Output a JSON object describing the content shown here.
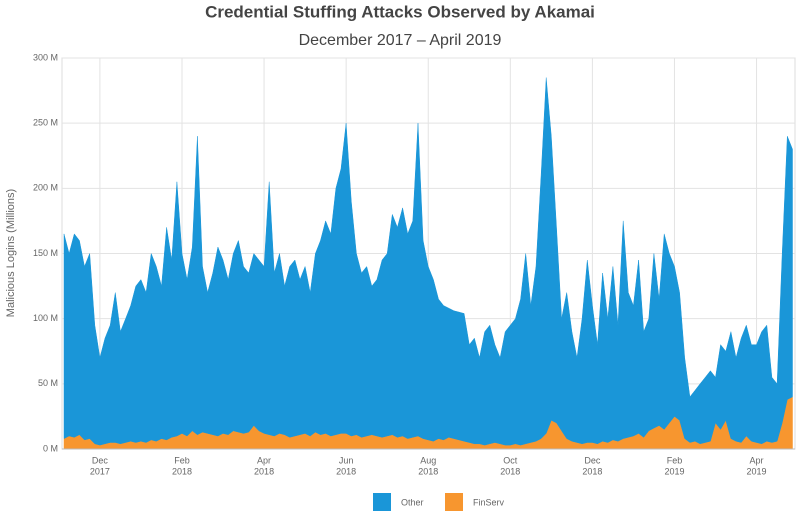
{
  "chart_data": {
    "type": "stacked_area",
    "title": "Credential Stuffing Attacks Observed by Akamai",
    "subtitle": "December 2017 – April 2019",
    "y_label": "Malicious Logins (Millions)",
    "ylim": [
      0,
      300
    ],
    "yticks": [
      {
        "value": 0,
        "label": "0 M"
      },
      {
        "value": 50,
        "label": "50 M"
      },
      {
        "value": 100,
        "label": "100 M"
      },
      {
        "value": 150,
        "label": "150 M"
      },
      {
        "value": 200,
        "label": "200 M"
      },
      {
        "value": 250,
        "label": "250 M"
      },
      {
        "value": 300,
        "label": "300 M"
      }
    ],
    "grid": true,
    "legend": "bottom",
    "categories": [
      null,
      null,
      null,
      null,
      null,
      null,
      null,
      [
        "Dec",
        "2017"
      ],
      null,
      null,
      null,
      null,
      null,
      null,
      null,
      null,
      null,
      null,
      null,
      null,
      null,
      null,
      null,
      [
        "Feb",
        "2018"
      ],
      null,
      null,
      null,
      null,
      null,
      null,
      null,
      null,
      null,
      null,
      null,
      null,
      null,
      null,
      null,
      [
        "Apr",
        "2018"
      ],
      null,
      null,
      null,
      null,
      null,
      null,
      null,
      null,
      null,
      null,
      null,
      null,
      null,
      null,
      null,
      [
        "Jun",
        "2018"
      ],
      null,
      null,
      null,
      null,
      null,
      null,
      null,
      null,
      null,
      null,
      null,
      null,
      null,
      null,
      null,
      [
        "Aug",
        "2018"
      ],
      null,
      null,
      null,
      null,
      null,
      null,
      null,
      null,
      null,
      null,
      null,
      null,
      null,
      null,
      null,
      [
        "Oct",
        "2018"
      ],
      null,
      null,
      null,
      null,
      null,
      null,
      null,
      null,
      null,
      null,
      null,
      null,
      null,
      null,
      null,
      [
        "Dec",
        "2018"
      ],
      null,
      null,
      null,
      null,
      null,
      null,
      null,
      null,
      null,
      null,
      null,
      null,
      null,
      null,
      null,
      [
        "Feb",
        "2019"
      ],
      null,
      null,
      null,
      null,
      null,
      null,
      null,
      null,
      null,
      null,
      null,
      null,
      null,
      null,
      null,
      [
        "Apr",
        "2019"
      ],
      null,
      null,
      null,
      null,
      null,
      null,
      null
    ],
    "series": [
      {
        "name": "Other",
        "color": "#1a96d8",
        "values": [
          157,
          140,
          156,
          149,
          133,
          142,
          91,
          67,
          81,
          90,
          115,
          86,
          95,
          104,
          120,
          124,
          115,
          143,
          134,
          117,
          163,
          136,
          195,
          138,
          120,
          141,
          229,
          127,
          108,
          124,
          145,
          133,
          119,
          136,
          147,
          128,
          122,
          132,
          131,
          128,
          194,
          125,
          138,
          114,
          131,
          135,
          119,
          128,
          110,
          137,
          149,
          163,
          155,
          189,
          203,
          238,
          180,
          139,
          126,
          130,
          114,
          120,
          136,
          140,
          169,
          161,
          175,
          157,
          166,
          240,
          152,
          133,
          124,
          107,
          103,
          99,
          98,
          98,
          98,
          75,
          81,
          66,
          87,
          91,
          75,
          66,
          87,
          92,
          96,
          112,
          146,
          105,
          134,
          202,
          273,
          218,
          150,
          86,
          112,
          84,
          65,
          96,
          140,
          105,
          76,
          129,
          95,
          133,
          89,
          167,
          111,
          100,
          133,
          81,
          86,
          134,
          97,
          150,
          130,
          115,
          98,
          62,
          35,
          39,
          46,
          50,
          54,
          35,
          65,
          53,
          82,
          64,
          80,
          85,
          74,
          75,
          86,
          89,
          50,
          44,
          130,
          202,
          190
        ]
      },
      {
        "name": "FinServ",
        "color": "#f7962f",
        "values": [
          8,
          10,
          9,
          11,
          7,
          8,
          4,
          3,
          4,
          5,
          5,
          4,
          5,
          6,
          5,
          6,
          5,
          7,
          6,
          8,
          7,
          9,
          10,
          12,
          10,
          14,
          11,
          13,
          12,
          11,
          10,
          12,
          11,
          14,
          13,
          12,
          13,
          18,
          14,
          12,
          11,
          10,
          12,
          11,
          9,
          10,
          11,
          12,
          10,
          13,
          11,
          12,
          10,
          11,
          12,
          12,
          10,
          11,
          9,
          10,
          11,
          10,
          9,
          10,
          11,
          9,
          10,
          8,
          9,
          10,
          8,
          7,
          6,
          8,
          7,
          9,
          8,
          7,
          6,
          5,
          4,
          4,
          3,
          4,
          5,
          4,
          3,
          3,
          4,
          3,
          4,
          5,
          6,
          8,
          12,
          22,
          20,
          14,
          8,
          6,
          5,
          4,
          5,
          5,
          4,
          6,
          5,
          7,
          6,
          8,
          9,
          10,
          12,
          9,
          14,
          16,
          18,
          15,
          20,
          25,
          22,
          8,
          5,
          6,
          4,
          5,
          6,
          20,
          15,
          22,
          8,
          6,
          5,
          10,
          6,
          5,
          4,
          6,
          5,
          6,
          20,
          38,
          40
        ]
      }
    ]
  }
}
